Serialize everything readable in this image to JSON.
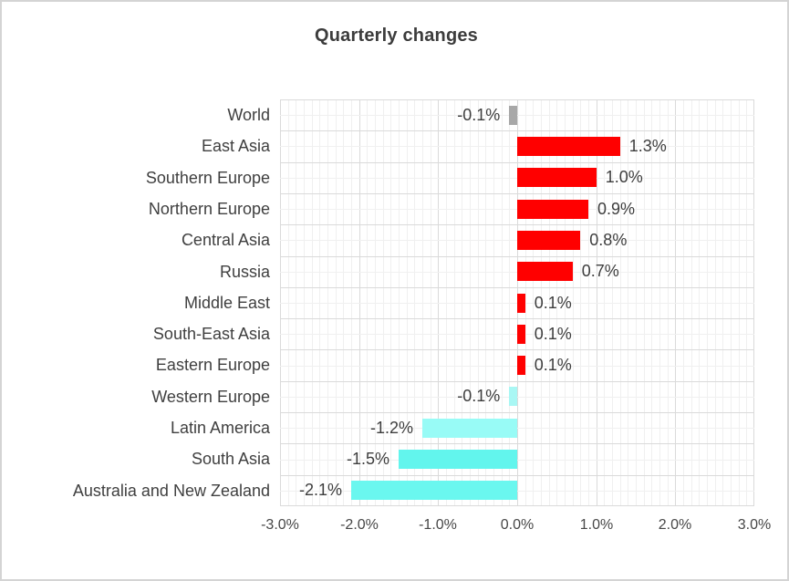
{
  "window": {
    "background_color": "#ffffff",
    "border_color": "#d4d4d4"
  },
  "chart_data": {
    "type": "bar",
    "orientation": "horizontal",
    "title": "Quarterly changes",
    "xlabel": "",
    "ylabel": "",
    "xlim": [
      -3,
      3
    ],
    "grid": "on (minor + major graph-paper mesh)",
    "legend": "none",
    "categories": [
      "World",
      "East Asia",
      "Southern Europe",
      "Northern Europe",
      "Central Asia",
      "Russia",
      "Middle East",
      "South-East Asia",
      "Eastern Europe",
      "Western Europe",
      "Latin America",
      "South Asia",
      "Australia and New Zealand"
    ],
    "values": [
      -0.1,
      1.3,
      1.0,
      0.9,
      0.8,
      0.7,
      0.1,
      0.1,
      0.1,
      -0.1,
      -1.2,
      -1.5,
      -2.1
    ],
    "value_labels": [
      "-0.1%",
      "1.3%",
      "1.0%",
      "0.9%",
      "0.8%",
      "0.7%",
      "0.1%",
      "0.1%",
      "0.1%",
      "-0.1%",
      "-1.2%",
      "-1.5%",
      "-2.1%"
    ],
    "bar_colors": [
      "#a8a8a8",
      "#ff0000",
      "#ff0000",
      "#ff0000",
      "#ff0000",
      "#ff0000",
      "#ff0000",
      "#ff0000",
      "#ff0000",
      "#a9f7f4",
      "#98fbf6",
      "#62f5ed",
      "#6af7ef"
    ],
    "x_tick_labels": [
      "-3.0%",
      "-2.0%",
      "-1.0%",
      "0.0%",
      "1.0%",
      "2.0%",
      "3.0%"
    ],
    "x_tick_values": [
      -3,
      -2,
      -1,
      0,
      1,
      2,
      3
    ],
    "colors": {
      "positive_bar": "#ff0000",
      "negative_bar": "#6af7ef",
      "world_bar": "#a8a8a8",
      "minor_grid": "#f0f0f0",
      "major_grid": "#dadada",
      "title_text": "#3c3c3c",
      "label_text": "#3f3f3f",
      "axis_text": "#464646"
    }
  }
}
